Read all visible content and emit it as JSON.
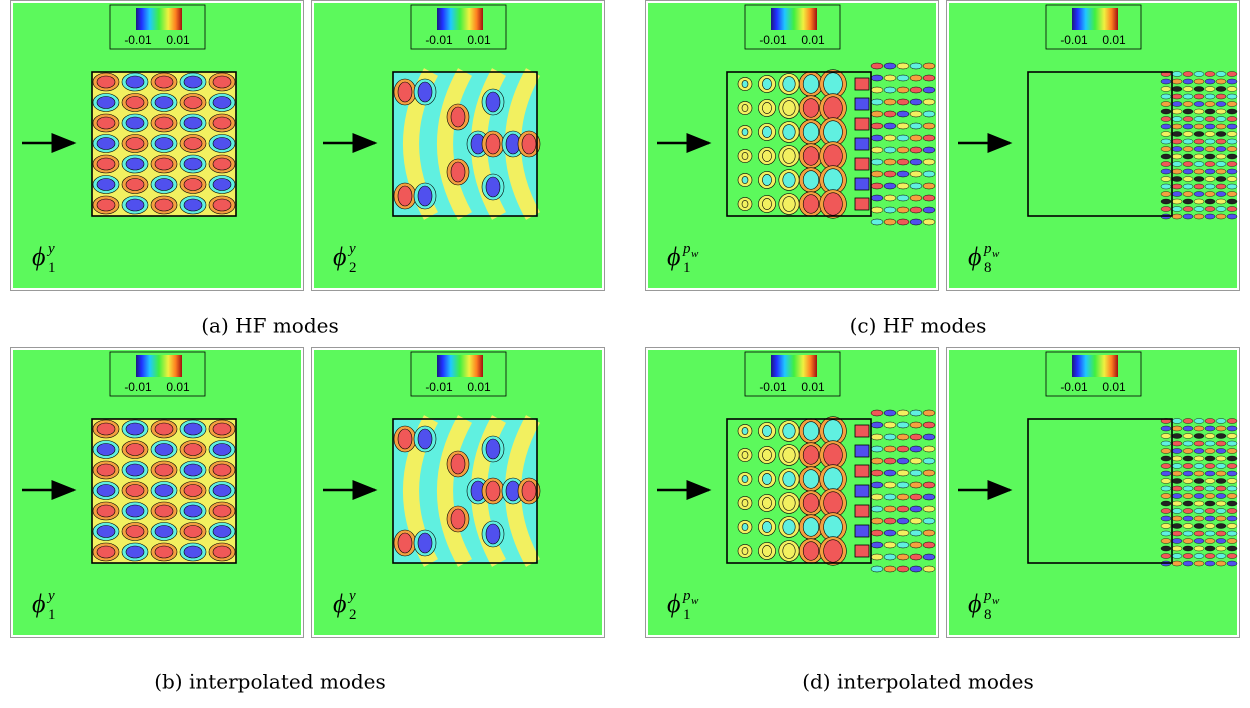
{
  "panels": [
    {
      "colorbar": {
        "min_label": "-0.01",
        "max_label": "0.01"
      },
      "label": {
        "symbol": "ϕ",
        "sub": "1",
        "sup": "y"
      }
    },
    {
      "colorbar": {
        "min_label": "-0.01",
        "max_label": "0.01"
      },
      "label": {
        "symbol": "ϕ",
        "sub": "2",
        "sup": "y"
      }
    },
    {
      "colorbar": {
        "min_label": "-0.01",
        "max_label": "0.01"
      },
      "label": {
        "symbol": "ϕ",
        "sub": "1",
        "sup": "p",
        "sup_sub": "w"
      }
    },
    {
      "colorbar": {
        "min_label": "-0.01",
        "max_label": "0.01"
      },
      "label": {
        "symbol": "ϕ",
        "sub": "8",
        "sup": "p",
        "sup_sub": "w"
      }
    },
    {
      "colorbar": {
        "min_label": "-0.01",
        "max_label": "0.01"
      },
      "label": {
        "symbol": "ϕ",
        "sub": "1",
        "sup": "y"
      }
    },
    {
      "colorbar": {
        "min_label": "-0.01",
        "max_label": "0.01"
      },
      "label": {
        "symbol": "ϕ",
        "sub": "2",
        "sup": "y"
      }
    },
    {
      "colorbar": {
        "min_label": "-0.01",
        "max_label": "0.01"
      },
      "label": {
        "symbol": "ϕ",
        "sub": "1",
        "sup": "p",
        "sup_sub": "w"
      }
    },
    {
      "colorbar": {
        "min_label": "-0.01",
        "max_label": "0.01"
      },
      "label": {
        "symbol": "ϕ",
        "sub": "8",
        "sup": "p",
        "sup_sub": "w"
      }
    }
  ],
  "captions": [
    "(a) HF modes",
    "(c) HF modes",
    "(b) interpolated modes",
    "(d) interpolated modes"
  ]
}
